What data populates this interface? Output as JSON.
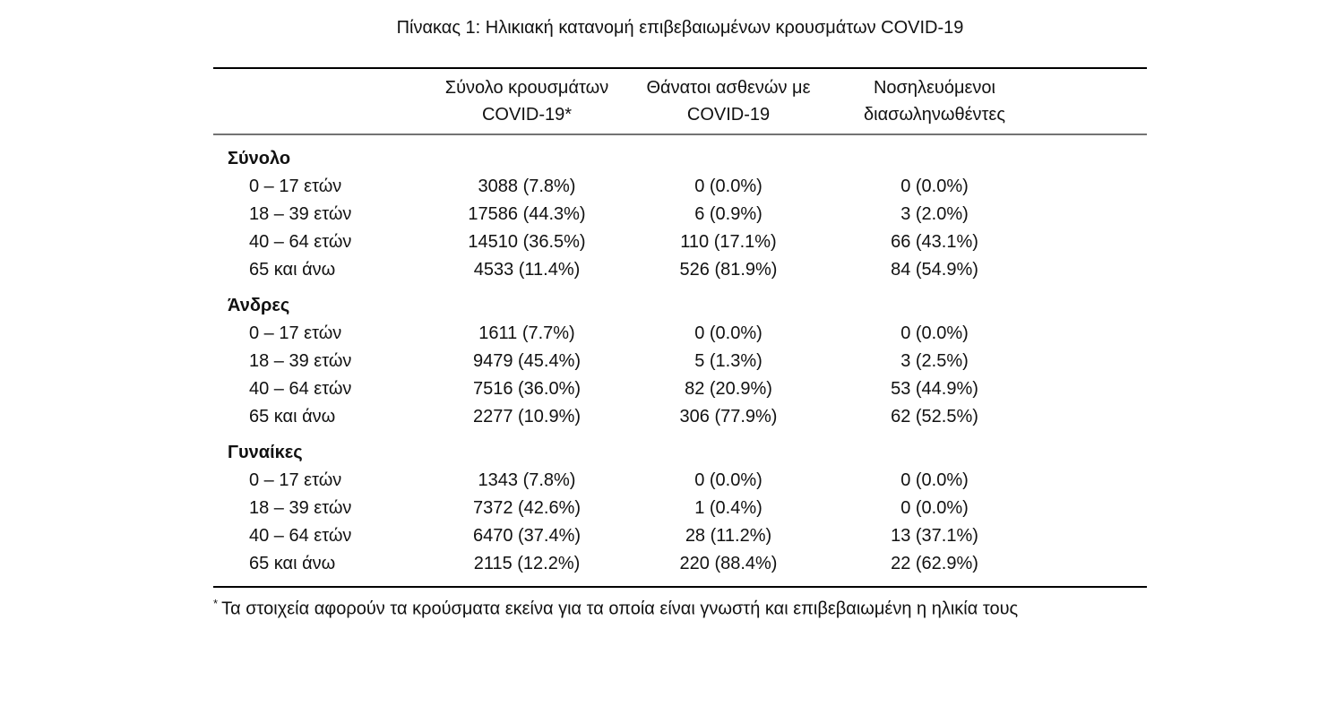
{
  "title": "Πίνακας 1: Ηλικιακή κατανομή επιβεβαιωμένων κρουσμάτων COVID-19",
  "table": {
    "col_headers": [
      {
        "line1": "Σύνολο κρουσμάτων",
        "line2": "COVID-19*"
      },
      {
        "line1": "Θάνατοι ασθενών με",
        "line2": "COVID-19"
      },
      {
        "line1": "Νοσηλευόμενοι",
        "line2": "διασωληνωθέντες"
      }
    ],
    "sections": [
      {
        "label": "Σύνολο",
        "rows": [
          {
            "age": "0 – 17 ετών",
            "cases": "3088 (7.8%)",
            "deaths": "0 (0.0%)",
            "intubated": "0 (0.0%)"
          },
          {
            "age": "18 – 39 ετών",
            "cases": "17586 (44.3%)",
            "deaths": "6 (0.9%)",
            "intubated": "3 (2.0%)"
          },
          {
            "age": "40 – 64 ετών",
            "cases": "14510 (36.5%)",
            "deaths": "110 (17.1%)",
            "intubated": "66 (43.1%)"
          },
          {
            "age": "65 και άνω",
            "cases": "4533 (11.4%)",
            "deaths": "526 (81.9%)",
            "intubated": "84 (54.9%)"
          }
        ]
      },
      {
        "label": "Άνδρες",
        "rows": [
          {
            "age": "0 – 17 ετών",
            "cases": "1611 (7.7%)",
            "deaths": "0 (0.0%)",
            "intubated": "0 (0.0%)"
          },
          {
            "age": "18 – 39 ετών",
            "cases": "9479 (45.4%)",
            "deaths": "5 (1.3%)",
            "intubated": "3 (2.5%)"
          },
          {
            "age": "40 – 64 ετών",
            "cases": "7516 (36.0%)",
            "deaths": "82 (20.9%)",
            "intubated": "53 (44.9%)"
          },
          {
            "age": "65 και άνω",
            "cases": "2277 (10.9%)",
            "deaths": "306 (77.9%)",
            "intubated": "62 (52.5%)"
          }
        ]
      },
      {
        "label": "Γυναίκες",
        "rows": [
          {
            "age": "0 – 17 ετών",
            "cases": "1343 (7.8%)",
            "deaths": "0 (0.0%)",
            "intubated": "0 (0.0%)"
          },
          {
            "age": "18 – 39 ετών",
            "cases": "7372 (42.6%)",
            "deaths": "1 (0.4%)",
            "intubated": "0 (0.0%)"
          },
          {
            "age": "40 – 64 ετών",
            "cases": "6470 (37.4%)",
            "deaths": "28 (11.2%)",
            "intubated": "13 (37.1%)"
          },
          {
            "age": "65 και άνω",
            "cases": "2115 (12.2%)",
            "deaths": "220 (88.4%)",
            "intubated": "22 (62.9%)"
          }
        ]
      }
    ],
    "footnote_marker": "*",
    "footnote": "Τα στοιχεία αφορούν τα κρούσματα εκείνα για τα οποία είναι γνωστή και επιβεβαιωμένη η ηλικία τους"
  }
}
